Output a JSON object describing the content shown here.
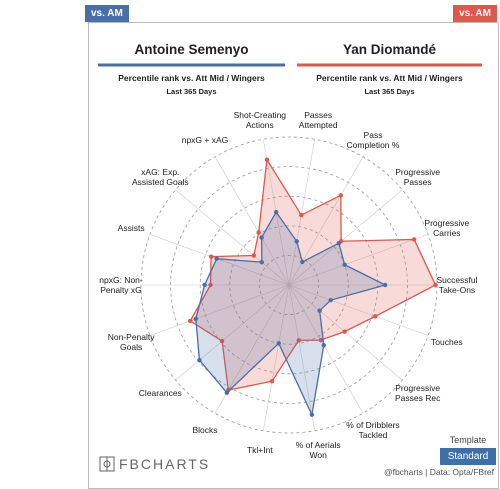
{
  "header": {
    "left_tag": "vs. AM",
    "right_tag": "vs. AM"
  },
  "players": [
    {
      "name": "Antoine Semenyo",
      "subtitle": "Percentile rank vs. Att Mid / Wingers",
      "period": "Last 365 Days"
    },
    {
      "name": "Yan Diomandé",
      "subtitle": "Percentile rank vs. Att Mid / Wingers",
      "period": "Last 365 Days"
    }
  ],
  "chart_data": {
    "type": "radar",
    "categories": [
      "Shot-Creating\nActions",
      "Passes\nAttempted",
      "Pass\nCompletion %",
      "Progressive\nPasses",
      "Progressive\nCarries",
      "Successful\nTake-Ons",
      "Touches",
      "Progressive\nPasses Rec",
      "% of Dribblers\nTackled",
      "% of Aerials\nWon",
      "Tkl+Int",
      "Blocks",
      "Clearances",
      "Non-Penalty\nGoals",
      "npxG: Non-\nPenalty xG",
      "Assists",
      "xAG: Exp.\nAssisted Goals",
      "npxG + xAG"
    ],
    "series": [
      {
        "name": "Antoine Semenyo",
        "color": "#4a6fa8",
        "values": [
          50,
          30,
          18,
          44,
          40,
          65,
          30,
          27,
          47,
          89,
          40,
          84,
          79,
          67,
          57,
          52,
          24,
          37
        ]
      },
      {
        "name": "Yan Diomandé",
        "color": "#e0574d",
        "values": [
          86,
          48,
          70,
          46,
          90,
          99,
          62,
          49,
          43,
          38,
          66,
          82,
          59,
          71,
          53,
          56,
          31,
          41
        ]
      }
    ],
    "rlim": [
      0,
      100
    ],
    "rticks": [
      20,
      40,
      60,
      80,
      100
    ],
    "grid": true
  },
  "template": {
    "label": "Template",
    "button": "Standard"
  },
  "footer": {
    "logo": "FBCHARTS",
    "credit": "@fbcharts | Data: Opta/FBref"
  }
}
